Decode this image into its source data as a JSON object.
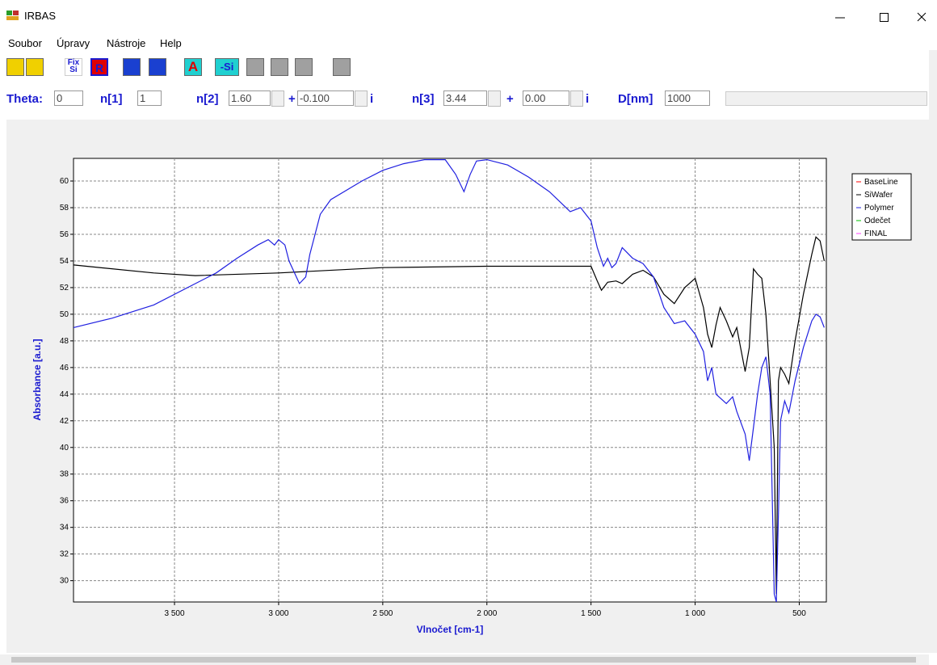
{
  "window": {
    "title": "IRBAS"
  },
  "menu": [
    "Soubor",
    "Úpravy",
    "Nástroje",
    "Help"
  ],
  "toolbar": {
    "fix": "Fix",
    "si": "Si",
    "r": "R",
    "a": "A",
    "minus_si": "-Si"
  },
  "params": {
    "theta_label": "Theta:",
    "theta": "0",
    "n1_label": "n[1]",
    "n1": "1",
    "n2_label": "n[2]",
    "n2_re": "1.60",
    "plus": "+",
    "n2_im": "-0.100",
    "i": "i",
    "n3_label": "n[3]",
    "n3_re": "3.44",
    "n3_im": "0.00",
    "d_label": "D[nm]",
    "d": "1000"
  },
  "chart_data": {
    "type": "line",
    "xlabel": "Vlnočet [cm-1]",
    "ylabel": "Absorbance [a.u.]",
    "xlim": [
      3985,
      370
    ],
    "ylim": [
      28.4,
      61.7
    ],
    "xticks": [
      {
        "value": 3500,
        "label": "3 500"
      },
      {
        "value": 3000,
        "label": "3 000"
      },
      {
        "value": 2500,
        "label": "2 500"
      },
      {
        "value": 2000,
        "label": "2 000"
      },
      {
        "value": 1500,
        "label": "1 500"
      },
      {
        "value": 1000,
        "label": "1 000"
      },
      500
    ],
    "yticks": [
      30,
      32,
      34,
      36,
      38,
      40,
      42,
      44,
      46,
      48,
      50,
      52,
      54,
      56,
      58,
      60
    ],
    "grid": true,
    "legend": "right",
    "series": [
      {
        "name": "BaseLine",
        "color": "#ff0000"
      },
      {
        "name": "SiWafer",
        "color": "#000000",
        "x": [
          3985,
          3600,
          3400,
          3000,
          2500,
          2000,
          1500,
          1470,
          1450,
          1420,
          1380,
          1350,
          1300,
          1250,
          1200,
          1150,
          1100,
          1050,
          1000,
          960,
          940,
          920,
          900,
          880,
          850,
          820,
          800,
          760,
          740,
          720,
          700,
          680,
          660,
          640,
          620,
          610,
          600,
          590,
          570,
          550,
          520,
          480,
          440,
          420,
          400,
          380
        ],
        "values": [
          53.7,
          53.1,
          52.9,
          53.1,
          53.5,
          53.6,
          53.6,
          52.5,
          51.8,
          52.4,
          52.5,
          52.3,
          53.0,
          53.3,
          52.8,
          51.5,
          50.8,
          52.0,
          52.7,
          50.5,
          48.5,
          47.5,
          49.2,
          50.5,
          49.5,
          48.3,
          49.0,
          45.7,
          47.5,
          53.4,
          53.0,
          52.7,
          50.0,
          45.0,
          40.0,
          29.0,
          45.0,
          46.0,
          45.5,
          44.8,
          48.0,
          51.5,
          54.5,
          55.8,
          55.5,
          54.0
        ]
      },
      {
        "name": "Polymer",
        "color": "#2020e0",
        "x": [
          3985,
          3800,
          3600,
          3400,
          3300,
          3200,
          3100,
          3050,
          3020,
          3000,
          2970,
          2950,
          2900,
          2870,
          2850,
          2800,
          2750,
          2600,
          2500,
          2400,
          2300,
          2200,
          2150,
          2110,
          2080,
          2050,
          2000,
          1900,
          1800,
          1700,
          1600,
          1550,
          1500,
          1470,
          1440,
          1420,
          1400,
          1380,
          1350,
          1300,
          1250,
          1200,
          1150,
          1100,
          1050,
          1000,
          960,
          940,
          920,
          900,
          850,
          820,
          800,
          760,
          740,
          720,
          700,
          680,
          660,
          640,
          620,
          610,
          600,
          590,
          570,
          550,
          520,
          480,
          440,
          420,
          400,
          380
        ],
        "values": [
          49.0,
          49.7,
          50.7,
          52.3,
          53.1,
          54.2,
          55.2,
          55.6,
          55.2,
          55.6,
          55.2,
          54.0,
          52.3,
          52.8,
          54.5,
          57.5,
          58.6,
          60.0,
          60.8,
          61.3,
          61.6,
          61.6,
          60.5,
          59.2,
          60.5,
          61.5,
          61.6,
          61.2,
          60.3,
          59.2,
          57.7,
          58.0,
          57.0,
          55.0,
          53.6,
          54.2,
          53.5,
          53.8,
          55.0,
          54.2,
          53.8,
          52.8,
          50.5,
          49.3,
          49.5,
          48.5,
          47.2,
          45.0,
          46.0,
          44.0,
          43.3,
          43.8,
          42.7,
          41.0,
          39.0,
          41.5,
          44.0,
          46.0,
          46.8,
          44.0,
          29.0,
          28.4,
          35.0,
          42.0,
          43.5,
          42.6,
          45.0,
          47.5,
          49.5,
          50.0,
          49.8,
          49.0
        ]
      },
      {
        "name": "Odečet",
        "color": "#00c000"
      },
      {
        "name": "FINAL",
        "color": "#ff40ff"
      }
    ]
  }
}
